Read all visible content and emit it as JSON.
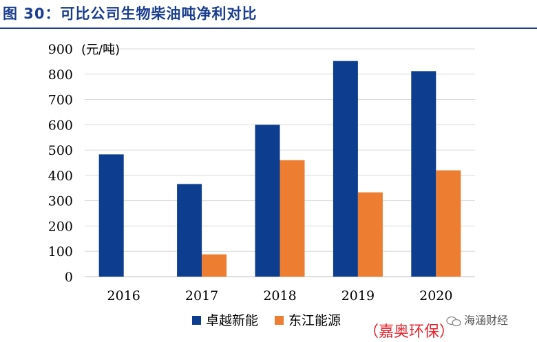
{
  "title": "图 30：可比公司生物柴油吨净利对比",
  "source_note": "（嘉奥环保）",
  "watermark": "海涵财经",
  "chart_data": {
    "type": "bar",
    "categories": [
      "2016",
      "2017",
      "2018",
      "2019",
      "2020"
    ],
    "series": [
      {
        "name": "卓越新能",
        "color": "#0d3d8f",
        "values": [
          483,
          366,
          600,
          852,
          812
        ]
      },
      {
        "name": "东江能源",
        "color": "#ed7d31",
        "values": [
          null,
          88,
          460,
          333,
          420
        ]
      }
    ],
    "unit_label": "(元/吨)",
    "ylim": [
      0,
      900
    ],
    "yticks": [
      0,
      100,
      200,
      300,
      400,
      500,
      600,
      700,
      800,
      900
    ],
    "grid": true,
    "legend": "bottom"
  }
}
